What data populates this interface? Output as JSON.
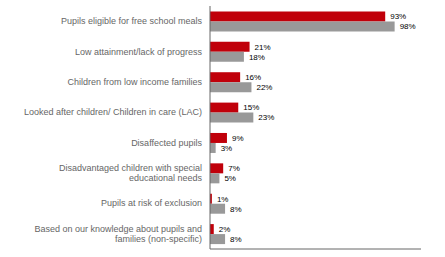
{
  "chart_data": {
    "type": "bar",
    "orientation": "horizontal",
    "categories": [
      "Based on our knowledge about pupils and\nfamilies (non-specific)",
      "Pupils at risk of exclusion",
      "Disadvantaged children with special\neducational needs",
      "Disaffected pupils",
      "Looked after children/ Children in care (LAC)",
      "Children from low income families",
      "Low attainment/lack of progress",
      "Pupils eligible for free school meals"
    ],
    "series": [
      {
        "color": "#c0000a",
        "values": [
          2,
          1,
          7,
          9,
          15,
          16,
          21,
          93
        ],
        "value_labels": [
          "2%",
          "1%",
          "7%",
          "9%",
          "15%",
          "16%",
          "21%",
          "93%"
        ]
      },
      {
        "color": "#999999",
        "values": [
          8,
          8,
          5,
          3,
          23,
          22,
          18,
          98
        ],
        "value_labels": [
          "8%",
          "8%",
          "5%",
          "3%",
          "23%",
          "22%",
          "18%",
          "98%"
        ]
      }
    ],
    "xlim": [
      0,
      112
    ],
    "grid": false,
    "data_labels": true,
    "tick_labels": "y"
  }
}
